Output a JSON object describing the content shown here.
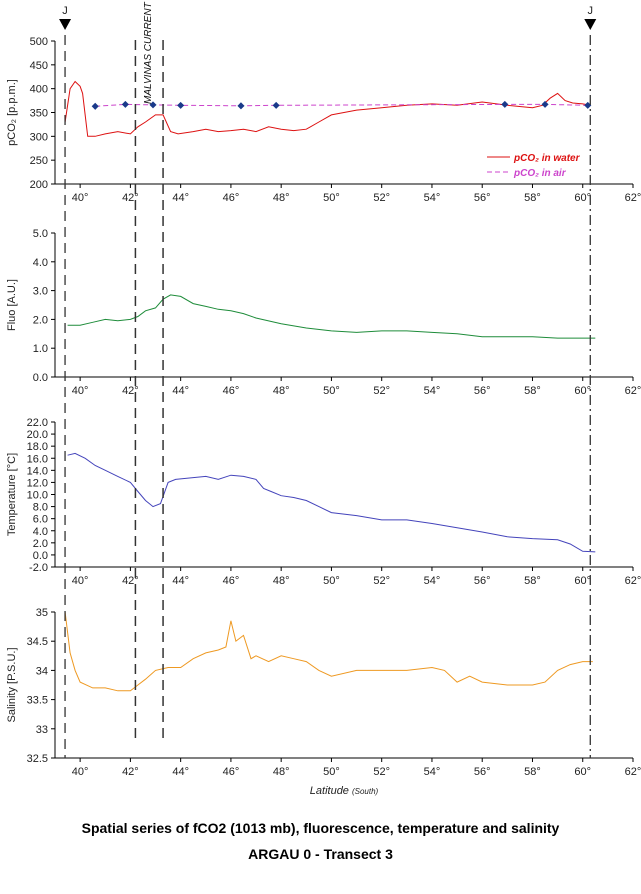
{
  "caption": {
    "line1": "Spatial series of fCO2 (1013 mb), fluorescence, temperature and salinity",
    "line2": "ARGAU 0  - Transect  3"
  },
  "x_axis": {
    "label": "Latitude",
    "label_suffix": "(South)",
    "range": [
      39,
      62
    ],
    "ticks": [
      40,
      42,
      44,
      46,
      48,
      50,
      52,
      54,
      56,
      58,
      60,
      62
    ],
    "tick_suffix": "°"
  },
  "markers": {
    "left_label": "J",
    "right_label": "J",
    "current_label": "MALVINAS CURRENT",
    "left_line_lat": 39.4,
    "right_line_lat": 60.3,
    "current_lines_lat": [
      42.2,
      43.3
    ]
  },
  "chart_data": [
    {
      "type": "line",
      "ylabel": "pCO₂ [p.p.m.]",
      "ylim": [
        200,
        500
      ],
      "yticks": [
        "500",
        "450",
        "400",
        "350",
        "300",
        "250",
        "200"
      ],
      "grid": false,
      "legend_placement": "bottom-right",
      "series": [
        {
          "name": "pCO₂ in water",
          "color": "#dd1111",
          "x": [
            39.4,
            39.6,
            39.8,
            40.0,
            40.1,
            40.3,
            40.6,
            41.0,
            41.5,
            42.0,
            42.3,
            42.6,
            43.0,
            43.3,
            43.6,
            43.9,
            44.5,
            45.0,
            45.5,
            46.0,
            46.5,
            47.0,
            47.5,
            48.0,
            48.5,
            49.0,
            49.5,
            50.0,
            51.0,
            52.0,
            53.0,
            54.0,
            55.0,
            56.0,
            57.0,
            58.0,
            58.4,
            58.7,
            59.0,
            59.3,
            59.6,
            60.0,
            60.3
          ],
          "y": [
            330,
            400,
            415,
            405,
            390,
            300,
            300,
            305,
            310,
            305,
            320,
            330,
            345,
            345,
            310,
            305,
            310,
            315,
            310,
            312,
            315,
            310,
            320,
            315,
            312,
            315,
            330,
            345,
            355,
            360,
            365,
            368,
            365,
            372,
            365,
            360,
            365,
            380,
            390,
            375,
            370,
            368,
            365
          ]
        },
        {
          "name": "pCO₂ in air",
          "color": "#cc44cc",
          "x": [
            40.6,
            41.8,
            42.9,
            44.0,
            46.4,
            47.8,
            56.9,
            58.5,
            60.2
          ],
          "y": [
            363,
            367,
            366,
            365,
            364,
            365,
            367,
            367,
            365
          ]
        }
      ]
    },
    {
      "type": "line",
      "ylabel": "Fluo [A.U.]",
      "ylim": [
        0,
        5
      ],
      "yticks": [
        "5.0",
        "4.0",
        "3.0",
        "2.0",
        "1.0",
        "0.0"
      ],
      "grid": false,
      "series": [
        {
          "color": "#1e8c3a",
          "x": [
            39.5,
            40.0,
            40.5,
            41.0,
            41.5,
            42.0,
            42.3,
            42.6,
            43.0,
            43.3,
            43.6,
            44.0,
            44.5,
            45.0,
            45.5,
            46.0,
            46.5,
            47.0,
            48.0,
            49.0,
            50.0,
            51.0,
            52.0,
            53.0,
            54.0,
            55.0,
            56.0,
            57.0,
            58.0,
            59.0,
            60.0,
            60.5
          ],
          "y": [
            1.8,
            1.8,
            1.9,
            2.0,
            1.95,
            2.0,
            2.1,
            2.3,
            2.4,
            2.7,
            2.85,
            2.8,
            2.55,
            2.45,
            2.35,
            2.3,
            2.2,
            2.05,
            1.85,
            1.7,
            1.6,
            1.55,
            1.6,
            1.6,
            1.55,
            1.5,
            1.4,
            1.4,
            1.4,
            1.35,
            1.35,
            1.35
          ]
        }
      ]
    },
    {
      "type": "line",
      "ylabel": "Temperature [°C]",
      "ylim": [
        -2,
        22
      ],
      "yticks": [
        "22.0",
        "20.0",
        "18.0",
        "16.0",
        "14.0",
        "12.0",
        "10.0",
        "8.0",
        "6.0",
        "4.0",
        "2.0",
        "0.0",
        "-2.0"
      ],
      "grid": false,
      "series": [
        {
          "color": "#4444bb",
          "x": [
            39.5,
            39.8,
            40.2,
            40.6,
            41.0,
            41.5,
            42.0,
            42.3,
            42.6,
            42.9,
            43.2,
            43.5,
            43.8,
            44.5,
            45.0,
            45.5,
            46.0,
            46.5,
            47.0,
            47.3,
            47.6,
            48.0,
            48.5,
            49.0,
            49.5,
            50.0,
            51.0,
            52.0,
            53.0,
            54.0,
            55.0,
            56.0,
            57.0,
            58.0,
            59.0,
            59.5,
            60.0,
            60.5
          ],
          "y": [
            16.5,
            16.8,
            16.0,
            14.8,
            14.0,
            13.0,
            12.0,
            10.5,
            9.0,
            8.0,
            8.5,
            12.0,
            12.5,
            12.8,
            13.0,
            12.5,
            13.2,
            13.0,
            12.5,
            11.0,
            10.5,
            9.8,
            9.5,
            9.0,
            8.0,
            7.0,
            6.5,
            5.8,
            5.8,
            5.2,
            4.5,
            3.8,
            3.0,
            2.7,
            2.5,
            1.8,
            0.6,
            0.5
          ]
        }
      ]
    },
    {
      "type": "line",
      "ylabel": "Salinity [P.S.U.]",
      "ylim": [
        32.5,
        35
      ],
      "yticks": [
        "35",
        "34.5",
        "34",
        "33.5",
        "33",
        "32.5"
      ],
      "grid": false,
      "series": [
        {
          "color": "#ee9922",
          "x": [
            39.4,
            39.6,
            39.8,
            40.0,
            40.5,
            41.0,
            41.5,
            42.0,
            42.3,
            42.6,
            43.0,
            43.5,
            44.0,
            44.5,
            45.0,
            45.5,
            45.8,
            46.0,
            46.2,
            46.5,
            46.8,
            47.0,
            47.5,
            48.0,
            48.5,
            49.0,
            49.5,
            50.0,
            51.0,
            52.0,
            53.0,
            54.0,
            54.5,
            55.0,
            55.5,
            56.0,
            57.0,
            58.0,
            58.5,
            59.0,
            59.5,
            60.0,
            60.4
          ],
          "y": [
            35.0,
            34.3,
            34.0,
            33.8,
            33.7,
            33.7,
            33.65,
            33.65,
            33.75,
            33.85,
            34.0,
            34.05,
            34.05,
            34.2,
            34.3,
            34.35,
            34.4,
            34.85,
            34.5,
            34.6,
            34.2,
            34.25,
            34.15,
            34.25,
            34.2,
            34.15,
            34.0,
            33.9,
            34.0,
            34.0,
            34.0,
            34.05,
            34.0,
            33.8,
            33.9,
            33.8,
            33.75,
            33.75,
            33.8,
            34.0,
            34.1,
            34.15,
            34.15
          ]
        }
      ]
    }
  ]
}
